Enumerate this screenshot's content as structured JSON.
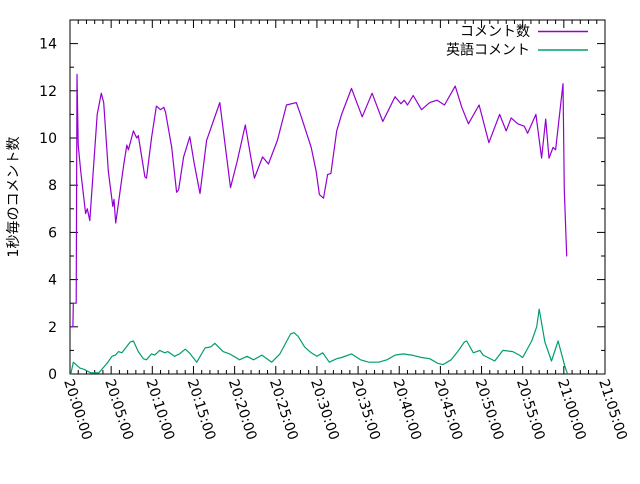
{
  "chart_data": {
    "type": "line",
    "title": "",
    "xlabel": "",
    "ylabel": "1秒毎のコメント数",
    "grid": false,
    "background_color": "#ffffff",
    "border_color": "#000000",
    "legend": {
      "position": "top-right-inside",
      "box": false
    },
    "x_axis": {
      "unit": "time HH:MM:SS",
      "start_minutes": 0,
      "end_minutes": 65,
      "major_tick_every_minutes": 5,
      "minor_tick_every_minutes": 1,
      "tick_labels": [
        "20:00:00",
        "20:05:00",
        "20:10:00",
        "20:15:00",
        "20:20:00",
        "20:25:00",
        "20:30:00",
        "20:35:00",
        "20:40:00",
        "20:45:00",
        "20:50:00",
        "20:55:00",
        "21:00:00",
        "21:05:00"
      ],
      "tick_label_rotation_deg": 72
    },
    "y_axis": {
      "min": 0,
      "max": 15,
      "major_tick_every": 2,
      "minor_tick_every": 1,
      "tick_labels": [
        "0",
        "2",
        "4",
        "6",
        "8",
        "10",
        "12",
        "14"
      ]
    },
    "series": [
      {
        "name": "コメント数",
        "color": "#9400d3",
        "points_unit": "[minutes after 20:00:00, comments per second]",
        "points": [
          [
            0.1,
            2.0
          ],
          [
            0.35,
            2.0
          ],
          [
            0.4,
            3.0
          ],
          [
            0.75,
            3.0
          ],
          [
            0.85,
            12.7
          ],
          [
            1.0,
            9.7
          ],
          [
            1.3,
            8.6
          ],
          [
            1.9,
            6.8
          ],
          [
            2.1,
            7.0
          ],
          [
            2.4,
            6.5
          ],
          [
            3.3,
            11.0
          ],
          [
            3.8,
            11.9
          ],
          [
            4.1,
            11.5
          ],
          [
            4.65,
            8.6
          ],
          [
            5.2,
            7.1
          ],
          [
            5.35,
            7.4
          ],
          [
            5.55,
            6.4
          ],
          [
            6.5,
            8.8
          ],
          [
            6.9,
            9.7
          ],
          [
            7.1,
            9.5
          ],
          [
            7.7,
            10.3
          ],
          [
            8.1,
            10.0
          ],
          [
            8.3,
            10.1
          ],
          [
            9.1,
            8.35
          ],
          [
            9.3,
            8.3
          ],
          [
            9.9,
            10.0
          ],
          [
            10.5,
            11.35
          ],
          [
            11.0,
            11.2
          ],
          [
            11.4,
            11.3
          ],
          [
            11.6,
            11.1
          ],
          [
            12.35,
            9.6
          ],
          [
            12.95,
            7.7
          ],
          [
            13.2,
            7.8
          ],
          [
            13.8,
            9.2
          ],
          [
            14.55,
            10.05
          ],
          [
            15.1,
            8.9
          ],
          [
            15.8,
            7.65
          ],
          [
            16.6,
            9.9
          ],
          [
            17.4,
            10.7
          ],
          [
            18.2,
            11.5
          ],
          [
            19.5,
            7.9
          ],
          [
            20.3,
            9.0
          ],
          [
            21.3,
            10.55
          ],
          [
            22.4,
            8.3
          ],
          [
            23.4,
            9.2
          ],
          [
            24.1,
            8.9
          ],
          [
            25.2,
            9.9
          ],
          [
            26.3,
            11.4
          ],
          [
            27.5,
            11.5
          ],
          [
            28.0,
            11.0
          ],
          [
            29.3,
            9.6
          ],
          [
            29.9,
            8.6
          ],
          [
            30.3,
            7.6
          ],
          [
            30.8,
            7.45
          ],
          [
            31.3,
            8.45
          ],
          [
            31.7,
            8.5
          ],
          [
            32.4,
            10.3
          ],
          [
            33.0,
            11.0
          ],
          [
            34.2,
            12.1
          ],
          [
            35.5,
            10.9
          ],
          [
            36.7,
            11.9
          ],
          [
            38.0,
            10.7
          ],
          [
            39.5,
            11.75
          ],
          [
            40.2,
            11.45
          ],
          [
            40.6,
            11.6
          ],
          [
            41.0,
            11.4
          ],
          [
            41.7,
            11.8
          ],
          [
            42.7,
            11.2
          ],
          [
            43.7,
            11.5
          ],
          [
            44.6,
            11.6
          ],
          [
            45.5,
            11.4
          ],
          [
            46.8,
            12.2
          ],
          [
            47.6,
            11.3
          ],
          [
            48.4,
            10.6
          ],
          [
            49.7,
            11.4
          ],
          [
            50.9,
            9.8
          ],
          [
            52.2,
            11.0
          ],
          [
            53.0,
            10.3
          ],
          [
            53.6,
            10.85
          ],
          [
            54.4,
            10.6
          ],
          [
            55.2,
            10.5
          ],
          [
            55.6,
            10.2
          ],
          [
            56.6,
            11.0
          ],
          [
            57.3,
            9.15
          ],
          [
            57.8,
            10.8
          ],
          [
            58.2,
            9.15
          ],
          [
            58.7,
            9.6
          ],
          [
            59.0,
            9.5
          ],
          [
            59.9,
            12.3
          ],
          [
            60.05,
            7.8
          ],
          [
            60.35,
            5.0
          ]
        ]
      },
      {
        "name": "英語コメント",
        "color": "#009e73",
        "points_unit": "[minutes after 20:00:00, comments per second]",
        "points": [
          [
            0.1,
            0.0
          ],
          [
            0.4,
            0.5
          ],
          [
            1.2,
            0.25
          ],
          [
            1.7,
            0.2
          ],
          [
            2.5,
            0.05
          ],
          [
            3.5,
            0.05
          ],
          [
            4.5,
            0.45
          ],
          [
            5.1,
            0.75
          ],
          [
            5.5,
            0.8
          ],
          [
            5.9,
            0.95
          ],
          [
            6.3,
            0.9
          ],
          [
            7.3,
            1.35
          ],
          [
            7.7,
            1.4
          ],
          [
            8.3,
            0.95
          ],
          [
            8.9,
            0.65
          ],
          [
            9.3,
            0.6
          ],
          [
            9.9,
            0.85
          ],
          [
            10.3,
            0.8
          ],
          [
            10.9,
            1.0
          ],
          [
            11.5,
            0.9
          ],
          [
            11.9,
            0.95
          ],
          [
            12.7,
            0.75
          ],
          [
            13.3,
            0.85
          ],
          [
            14.0,
            1.05
          ],
          [
            14.5,
            0.9
          ],
          [
            15.4,
            0.5
          ],
          [
            16.4,
            1.1
          ],
          [
            17.1,
            1.15
          ],
          [
            17.6,
            1.3
          ],
          [
            18.6,
            0.95
          ],
          [
            19.4,
            0.85
          ],
          [
            20.6,
            0.6
          ],
          [
            21.5,
            0.75
          ],
          [
            22.3,
            0.6
          ],
          [
            23.3,
            0.8
          ],
          [
            24.5,
            0.5
          ],
          [
            25.5,
            0.85
          ],
          [
            26.8,
            1.7
          ],
          [
            27.2,
            1.75
          ],
          [
            27.7,
            1.6
          ],
          [
            28.5,
            1.15
          ],
          [
            29.3,
            0.9
          ],
          [
            30.0,
            0.75
          ],
          [
            30.7,
            0.9
          ],
          [
            31.5,
            0.5
          ],
          [
            32.4,
            0.65
          ],
          [
            33.0,
            0.7
          ],
          [
            34.2,
            0.85
          ],
          [
            35.3,
            0.6
          ],
          [
            36.3,
            0.5
          ],
          [
            37.5,
            0.5
          ],
          [
            38.5,
            0.6
          ],
          [
            39.5,
            0.8
          ],
          [
            40.5,
            0.85
          ],
          [
            41.5,
            0.8
          ],
          [
            42.7,
            0.7
          ],
          [
            43.7,
            0.65
          ],
          [
            44.7,
            0.45
          ],
          [
            45.3,
            0.4
          ],
          [
            46.3,
            0.6
          ],
          [
            47.0,
            0.9
          ],
          [
            47.9,
            1.35
          ],
          [
            48.2,
            1.4
          ],
          [
            49.0,
            0.9
          ],
          [
            49.8,
            1.0
          ],
          [
            50.2,
            0.8
          ],
          [
            51.6,
            0.55
          ],
          [
            52.6,
            1.0
          ],
          [
            53.8,
            0.95
          ],
          [
            54.6,
            0.8
          ],
          [
            55.0,
            0.7
          ],
          [
            56.1,
            1.4
          ],
          [
            56.7,
            2.0
          ],
          [
            57.0,
            2.75
          ],
          [
            57.7,
            1.35
          ],
          [
            58.5,
            0.55
          ],
          [
            59.3,
            1.4
          ],
          [
            60.1,
            0.35
          ],
          [
            60.4,
            0.05
          ]
        ]
      }
    ]
  }
}
